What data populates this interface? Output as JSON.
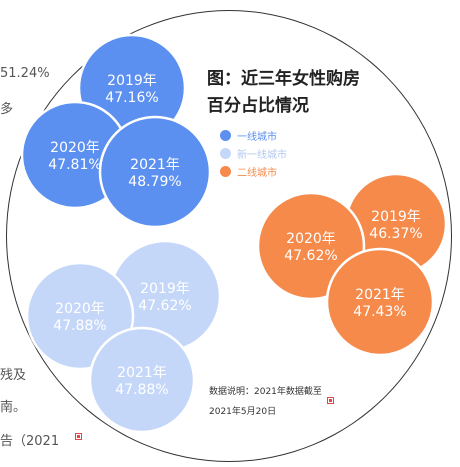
{
  "background_text": {
    "line1": "51.24%",
    "line2": "多",
    "line3": "残及",
    "line4": "南。",
    "line5": "告（2021"
  },
  "chart_data": {
    "type": "bubble",
    "title": "图：近三年女性购房百分占比情况",
    "title_line1": "图：近三年女性购房",
    "title_line2": "百分占比情况",
    "legend": [
      {
        "name": "一线城市",
        "color": "#5b8ff0"
      },
      {
        "name": "新一线城市",
        "color": "#c5d7f9"
      },
      {
        "name": "二线城市",
        "color": "#f58a4b"
      }
    ],
    "series": [
      {
        "name": "一线城市",
        "color": "#5b8ff0",
        "points": [
          {
            "year": "2019年",
            "value": "47.16%"
          },
          {
            "year": "2020年",
            "value": "47.81%"
          },
          {
            "year": "2021年",
            "value": "48.79%"
          }
        ]
      },
      {
        "name": "新一线城市",
        "color": "#c5d7f9",
        "points": [
          {
            "year": "2019年",
            "value": "47.62%"
          },
          {
            "year": "2020年",
            "value": "47.88%"
          },
          {
            "year": "2021年",
            "value": "47.88%"
          }
        ]
      },
      {
        "name": "二线城市",
        "color": "#f58a4b",
        "points": [
          {
            "year": "2019年",
            "value": "46.37%"
          },
          {
            "year": "2020年",
            "value": "47.62%"
          },
          {
            "year": "2021年",
            "value": "47.43%"
          }
        ]
      }
    ],
    "note_line1": "数据说明：2021年数据截至",
    "note_line2": "2021年5月20日"
  }
}
